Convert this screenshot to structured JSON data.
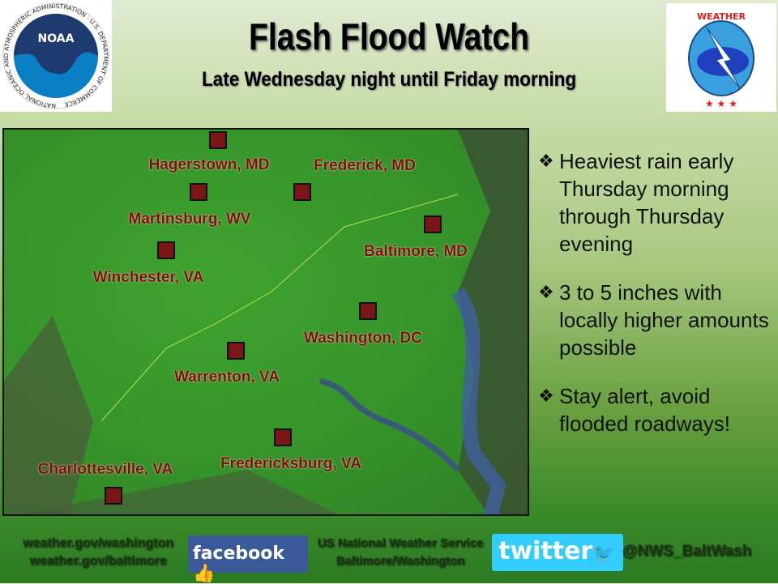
{
  "header": {
    "title": "Flash Flood Watch",
    "subtitle": "Late Wednesday night until Friday morning",
    "noaa_logo_text": "NOAA",
    "noaa_ring_text": "NATIONAL OCEANIC AND ATMOSPHERIC ADMINISTRATION · U.S. DEPARTMENT OF COMMERCE",
    "nws_logo_text": "NATIONAL WEATHER SERVICE"
  },
  "map": {
    "cities": [
      {
        "name": "Hagerstown, MD"
      },
      {
        "name": "Frederick, MD"
      },
      {
        "name": "Martinsburg, WV"
      },
      {
        "name": "Baltimore, MD"
      },
      {
        "name": "Winchester, VA"
      },
      {
        "name": "Washington, DC"
      },
      {
        "name": "Warrenton, VA"
      },
      {
        "name": "Fredericksburg, VA"
      },
      {
        "name": "Charlottesville, VA"
      }
    ],
    "colors": {
      "watch_area": "#3fa32e",
      "city_marker": "#7a1616"
    }
  },
  "bullets": [
    "Heaviest rain early Thursday morning through Thursday evening",
    "3 to 5 inches with locally higher amounts possible",
    "Stay alert, avoid flooded roadways!"
  ],
  "footer": {
    "web1": "weather.gov/washington",
    "web2": "weather.gov/baltimore",
    "facebook": "facebook",
    "nws_line1": "US National Weather Service",
    "nws_line2": "Baltimore/Washington",
    "twitter": "twitter",
    "handle": "@NWS_BaltWash"
  }
}
